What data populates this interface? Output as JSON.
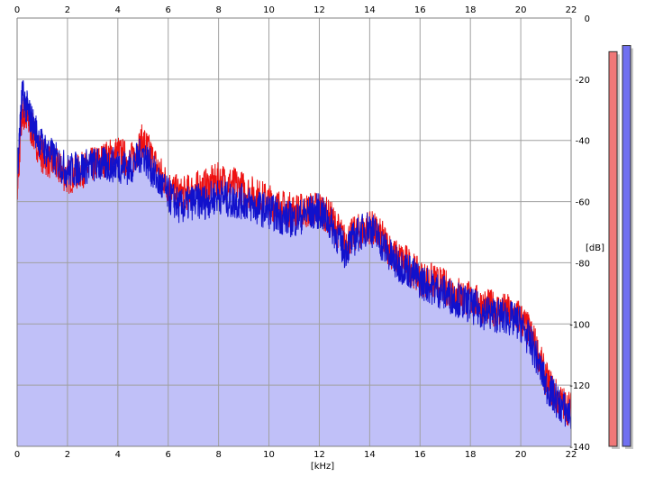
{
  "chart_data": {
    "type": "area",
    "xlabel": "[kHz]",
    "ylabel": "[dB]",
    "xlim": [
      0,
      22
    ],
    "ylim": [
      -140,
      0
    ],
    "x_ticks": [
      0,
      2,
      4,
      6,
      8,
      10,
      12,
      14,
      16,
      18,
      20,
      22
    ],
    "y_ticks": [
      0,
      -20,
      -40,
      -60,
      -80,
      -100,
      -120,
      -140
    ],
    "grid": true,
    "colors": {
      "red": "#ee1111",
      "blue": "#1111cc",
      "fill": "#c0c0f8",
      "meter_red": "#f07878",
      "meter_blue": "#7070f0"
    },
    "series": [
      {
        "x": [
          0,
          0.2,
          0.5,
          1,
          1.5,
          2,
          2.5,
          3,
          3.5,
          4,
          4.5,
          5,
          5.5,
          6,
          6.5,
          7,
          7.5,
          8,
          8.5,
          9,
          9.5,
          10,
          10.5,
          11,
          11.5,
          12,
          12.5,
          13,
          13.5,
          14,
          14.5,
          15,
          15.5,
          16,
          16.5,
          17,
          17.5,
          18,
          18.5,
          19,
          19.5,
          20,
          20.5,
          21,
          21.5,
          22
        ],
        "values": [
          -58,
          -30,
          -35,
          -45,
          -48,
          -52,
          -50,
          -48,
          -46,
          -44,
          -47,
          -40,
          -48,
          -55,
          -58,
          -56,
          -55,
          -53,
          -54,
          -56,
          -58,
          -60,
          -62,
          -63,
          -63,
          -62,
          -66,
          -73,
          -70,
          -68,
          -72,
          -78,
          -80,
          -85,
          -86,
          -88,
          -90,
          -92,
          -94,
          -95,
          -96,
          -98,
          -105,
          -118,
          -125,
          -128
        ]
      },
      {
        "x": [
          0,
          0.2,
          0.5,
          1,
          1.5,
          2,
          2.5,
          3,
          3.5,
          4,
          4.5,
          5,
          5.5,
          6,
          6.5,
          7,
          7.5,
          8,
          8.5,
          9,
          9.5,
          10,
          10.5,
          11,
          11.5,
          12,
          12.5,
          13,
          13.5,
          14,
          14.5,
          15,
          15.5,
          16,
          16.5,
          17,
          17.5,
          18,
          18.5,
          19,
          19.5,
          20,
          20.5,
          21,
          21.5,
          22
        ],
        "values": [
          -50,
          -25,
          -32,
          -42,
          -46,
          -50,
          -49,
          -48,
          -48,
          -48,
          -49,
          -44,
          -52,
          -58,
          -62,
          -60,
          -60,
          -58,
          -60,
          -60,
          -62,
          -63,
          -65,
          -66,
          -64,
          -63,
          -68,
          -76,
          -71,
          -68,
          -74,
          -80,
          -82,
          -86,
          -88,
          -90,
          -92,
          -94,
          -96,
          -97,
          -98,
          -100,
          -108,
          -120,
          -126,
          -130
        ]
      }
    ],
    "meters": [
      {
        "level_db": -11
      },
      {
        "level_db": -9
      }
    ]
  },
  "axes": {
    "x_tick_labels": [
      "0",
      "2",
      "4",
      "6",
      "8",
      "10",
      "12",
      "14",
      "16",
      "18",
      "20",
      "22"
    ],
    "y_tick_labels": [
      "0",
      "-20",
      "-40",
      "-60",
      "-80",
      "-100",
      "-120",
      "-140"
    ]
  }
}
